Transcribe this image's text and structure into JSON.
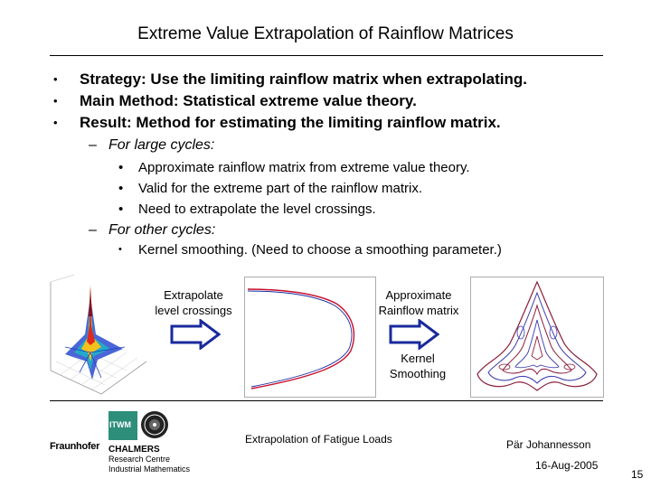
{
  "slide": {
    "title": "Extreme Value Extrapolation of Rainflow Matrices",
    "bullets": [
      {
        "marker": "•",
        "text": "Strategy: Use the limiting rainflow matrix when extrapolating."
      },
      {
        "marker": "•",
        "text": "Main Method: Statistical extreme value theory."
      },
      {
        "marker": "•",
        "text": "Result: Method for estimating the limiting rainflow matrix."
      }
    ],
    "sub_sections": [
      {
        "marker": "–",
        "heading": "For large cycles:",
        "items": [
          {
            "marker": "•",
            "text": "Approximate rainflow matrix from extreme value theory."
          },
          {
            "marker": "•",
            "text": "Valid for the extreme part of the rainflow matrix."
          },
          {
            "marker": "•",
            "text": "Need to extrapolate the level crossings."
          }
        ]
      },
      {
        "marker": "–",
        "heading": "For other cycles:",
        "items": [
          {
            "marker": "•",
            "text": "Kernel smoothing. (Need to choose a smoothing parameter.)"
          }
        ]
      }
    ]
  },
  "diagram": {
    "step1_label_line1": "Extrapolate",
    "step1_label_line2": "level crossings",
    "step2_label_line1": "Approximate",
    "step2_label_line2": "Rainflow matrix",
    "step3_label_line1": "Kernel",
    "step3_label_line2": "Smoothing",
    "colors": {
      "arrow_fill": "#ffffff",
      "arrow_stroke": "#1a2a9c",
      "curve_red": "#c8102e",
      "curve_blue": "#1a2a9c",
      "surface_peak": "#d81e1e",
      "surface_base": "#1f3fbf"
    }
  },
  "footer": {
    "center_text": "Extrapolation of Fatigue Loads",
    "author": "Pär Johannesson",
    "date": "16-Aug-2005",
    "page_number": "15",
    "logos": {
      "fraunhofer": "Fraunhofer",
      "itwm": "ITWM",
      "chalmers": "CHALMERS",
      "chalmers_line2": "Research Centre",
      "chalmers_line3": "Industrial Mathematics"
    }
  }
}
